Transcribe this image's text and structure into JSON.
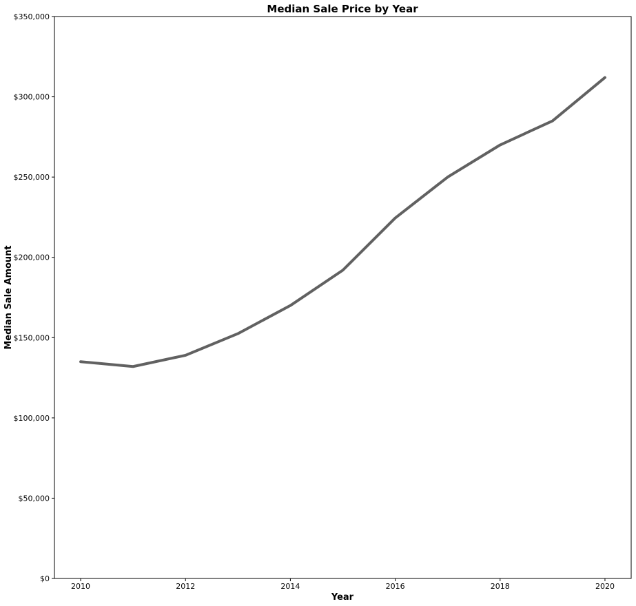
{
  "chart_data": {
    "type": "line",
    "title": "Median Sale Price by Year",
    "xlabel": "Year",
    "ylabel": "Median Sale Amount",
    "x": [
      2010,
      2011,
      2012,
      2013,
      2014,
      2015,
      2016,
      2017,
      2018,
      2019,
      2020
    ],
    "series": [
      {
        "values": [
          135000,
          132000,
          139000,
          152500,
          170000,
          192000,
          224500,
          250000,
          270000,
          285000,
          312000
        ],
        "color": "#616161"
      }
    ],
    "xlim": [
      2009.5,
      2020.5
    ],
    "ylim": [
      0,
      350000
    ],
    "xticks": [
      2010,
      2012,
      2014,
      2016,
      2018,
      2020
    ],
    "xtick_labels": [
      "2010",
      "2012",
      "2014",
      "2016",
      "2018",
      "2020"
    ],
    "yticks": [
      0,
      50000,
      100000,
      150000,
      200000,
      250000,
      300000,
      350000
    ],
    "ytick_labels": [
      "$0",
      "$50,000",
      "$100,000",
      "$150,000",
      "$200,000",
      "$250,000",
      "$300,000",
      "$350,000"
    ],
    "grid": false,
    "legend": "none"
  }
}
